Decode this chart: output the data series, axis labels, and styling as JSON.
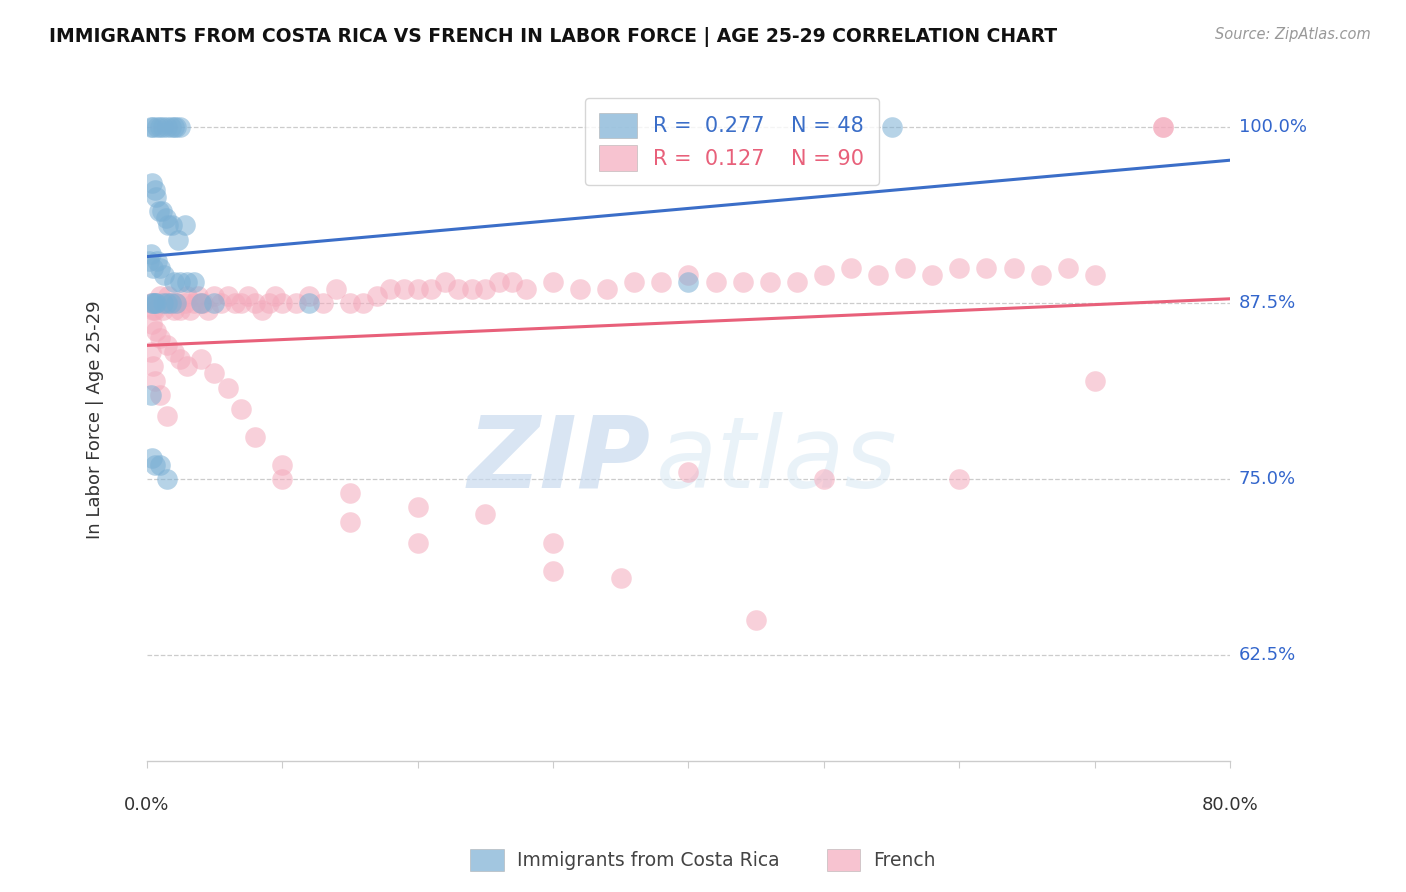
{
  "title": "IMMIGRANTS FROM COSTA RICA VS FRENCH IN LABOR FORCE | AGE 25-29 CORRELATION CHART",
  "source": "Source: ZipAtlas.com",
  "ylabel": "In Labor Force | Age 25-29",
  "yticks": [
    62.5,
    75.0,
    87.5,
    100.0
  ],
  "ytick_labels": [
    "62.5%",
    "75.0%",
    "87.5%",
    "100.0%"
  ],
  "xmin": 0.0,
  "xmax": 80.0,
  "ymin": 55.0,
  "ymax": 103.5,
  "blue_R": 0.277,
  "blue_N": 48,
  "pink_R": 0.127,
  "pink_N": 90,
  "blue_color": "#7BAFD4",
  "pink_color": "#F4AABC",
  "blue_line_color": "#3B6EC8",
  "pink_line_color": "#E8607A",
  "watermark_zip": "ZIP",
  "watermark_atlas": "atlas",
  "blue_x": [
    0.3,
    0.5,
    0.8,
    1.0,
    1.2,
    1.5,
    1.8,
    2.0,
    2.2,
    2.5,
    0.4,
    0.6,
    0.7,
    0.9,
    1.1,
    1.4,
    1.6,
    1.9,
    2.3,
    2.8,
    0.2,
    0.3,
    0.5,
    0.8,
    1.0,
    1.3,
    2.0,
    2.5,
    3.0,
    3.5,
    0.4,
    0.6,
    1.2,
    1.8,
    0.5,
    0.7,
    4.0,
    5.0,
    1.5,
    2.2,
    0.3,
    0.4,
    0.6,
    1.0,
    1.5,
    12.0,
    40.0,
    55.0
  ],
  "blue_y": [
    100.0,
    100.0,
    100.0,
    100.0,
    100.0,
    100.0,
    100.0,
    100.0,
    100.0,
    100.0,
    96.0,
    95.5,
    95.0,
    94.0,
    94.0,
    93.5,
    93.0,
    93.0,
    92.0,
    93.0,
    90.5,
    91.0,
    90.0,
    90.5,
    90.0,
    89.5,
    89.0,
    89.0,
    89.0,
    89.0,
    87.5,
    87.5,
    87.5,
    87.5,
    87.5,
    87.5,
    87.5,
    87.5,
    87.5,
    87.5,
    81.0,
    76.5,
    76.0,
    76.0,
    75.0,
    87.5,
    89.0,
    100.0
  ],
  "pink_x": [
    0.3,
    0.5,
    0.6,
    0.8,
    1.0,
    1.2,
    1.4,
    1.6,
    1.8,
    2.0,
    2.2,
    2.5,
    2.8,
    3.0,
    3.2,
    3.5,
    3.8,
    4.0,
    4.2,
    4.5,
    5.0,
    5.5,
    6.0,
    6.5,
    7.0,
    7.5,
    8.0,
    8.5,
    9.0,
    9.5,
    10.0,
    11.0,
    12.0,
    13.0,
    14.0,
    15.0,
    16.0,
    17.0,
    18.0,
    19.0,
    20.0,
    21.0,
    22.0,
    23.0,
    24.0,
    25.0,
    26.0,
    27.0,
    28.0,
    30.0,
    32.0,
    34.0,
    36.0,
    38.0,
    40.0,
    42.0,
    44.0,
    46.0,
    48.0,
    50.0,
    52.0,
    54.0,
    56.0,
    58.0,
    60.0,
    62.0,
    64.0,
    66.0,
    68.0,
    70.0,
    0.4,
    0.7,
    1.0,
    1.5,
    2.0,
    2.5,
    3.0,
    4.0,
    5.0,
    6.0,
    7.0,
    8.0,
    10.0,
    15.0,
    20.0,
    25.0,
    30.0,
    35.0,
    45.0,
    75.0
  ],
  "pink_y": [
    87.5,
    87.0,
    87.0,
    87.5,
    88.0,
    87.0,
    87.5,
    88.0,
    87.5,
    87.0,
    87.5,
    87.0,
    87.5,
    88.0,
    87.0,
    87.5,
    88.0,
    87.5,
    87.5,
    87.0,
    88.0,
    87.5,
    88.0,
    87.5,
    87.5,
    88.0,
    87.5,
    87.0,
    87.5,
    88.0,
    87.5,
    87.5,
    88.0,
    87.5,
    88.5,
    87.5,
    87.5,
    88.0,
    88.5,
    88.5,
    88.5,
    88.5,
    89.0,
    88.5,
    88.5,
    88.5,
    89.0,
    89.0,
    88.5,
    89.0,
    88.5,
    88.5,
    89.0,
    89.0,
    89.5,
    89.0,
    89.0,
    89.0,
    89.0,
    89.5,
    90.0,
    89.5,
    90.0,
    89.5,
    90.0,
    90.0,
    90.0,
    89.5,
    90.0,
    89.5,
    86.0,
    85.5,
    85.0,
    84.5,
    84.0,
    83.5,
    83.0,
    83.5,
    82.5,
    81.5,
    80.0,
    78.0,
    75.0,
    74.0,
    73.0,
    72.5,
    70.5,
    68.0,
    65.0,
    100.0
  ],
  "pink_extra_x": [
    0.3,
    0.5,
    0.6,
    1.0,
    1.5,
    10.0,
    15.0,
    20.0,
    30.0,
    40.0,
    50.0,
    60.0,
    70.0,
    75.0
  ],
  "pink_extra_y": [
    84.0,
    83.0,
    82.0,
    81.0,
    79.5,
    76.0,
    72.0,
    70.5,
    68.5,
    75.5,
    75.0,
    75.0,
    82.0,
    100.0
  ]
}
